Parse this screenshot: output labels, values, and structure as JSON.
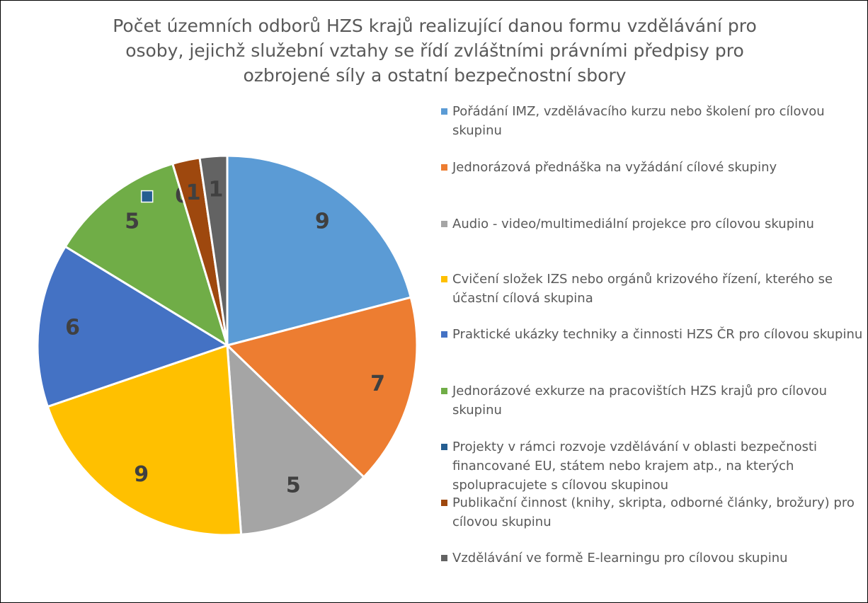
{
  "chart_data": {
    "type": "pie",
    "title": "Počet územních odborů HZS krajů realizující danou formu vzdělávání pro osoby, jejichž služební vztahy se řídí zvláštními právními předpisy pro ozbrojené síly a ostatní bezpečnostní sbory",
    "categories": [
      "Pořádání IMZ, vzdělávacího kurzu nebo školení pro cílovou skupinu",
      "Jednorázová přednáška na vyžádání cílové skupiny",
      "Audio - video/multimediální projekce pro cílovou skupinu",
      "Cvičení složek IZS nebo orgánů krizového řízení, kterého se účastní cílová skupina",
      "Praktické ukázky techniky a činnosti HZS ČR pro cílovou skupinu",
      "Jednorázové exkurze na pracovištích HZS krajů pro cílovou skupinu",
      "Projekty v rámci rozvoje vzdělávání v oblasti bezpečnosti financované EU, státem nebo krajem atp., na kterých spolupracujete s cílovou skupinou",
      "Publikační činnost (knihy, skripta, odborné články, brožury) pro cílovou skupinu",
      "Vzdělávání ve formě E-learningu pro cílovou skupinu"
    ],
    "values": [
      9,
      7,
      5,
      9,
      6,
      5,
      0,
      1,
      1
    ],
    "colors": [
      "#5b9bd5",
      "#ed7d31",
      "#a5a5a5",
      "#ffc000",
      "#4472c4",
      "#70ad47",
      "#255e91",
      "#9e480e",
      "#636363"
    ],
    "legend": "right"
  }
}
